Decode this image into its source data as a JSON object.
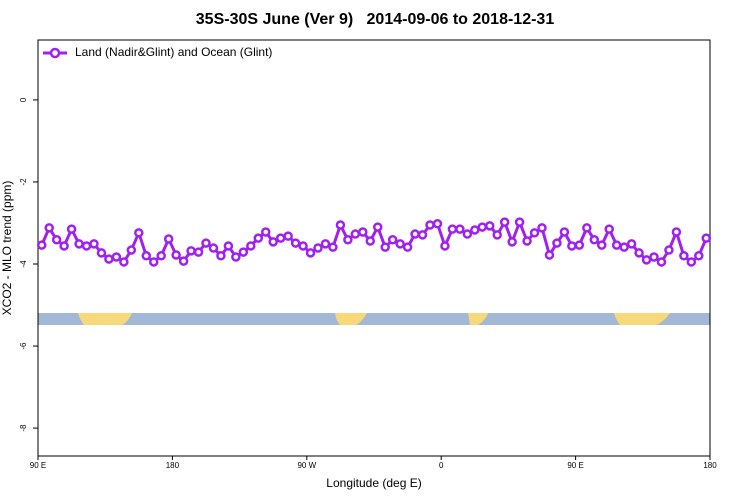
{
  "chart_data": {
    "type": "line",
    "title": "35S-30S June (Ver 9)   2014-09-06 to 2018-12-31",
    "x_label": "Longitude (deg E)",
    "y_label": "XCO2 - MLO trend (ppm)",
    "x": [
      92.5,
      97.5,
      102.5,
      107.5,
      112.5,
      117.5,
      122.5,
      127.5,
      132.5,
      137.5,
      142.5,
      147.5,
      152.5,
      157.5,
      162.5,
      167.5,
      172.5,
      177.5,
      182.5,
      187.5,
      192.5,
      197.5,
      202.5,
      207.5,
      212.5,
      217.5,
      222.5,
      227.5,
      232.5,
      237.5,
      242.5,
      247.5,
      252.5,
      257.5,
      262.5,
      267.5,
      272.5,
      277.5,
      282.5,
      287.5,
      292.5,
      297.5,
      302.5,
      307.5,
      312.5,
      317.5,
      322.5,
      327.5,
      332.5,
      337.5,
      342.5,
      347.5,
      352.5,
      357.5,
      362.5,
      367.5,
      372.5,
      377.5,
      382.5,
      387.5,
      392.5,
      397.5,
      402.5,
      407.5,
      412.5,
      417.5,
      422.5,
      427.5,
      432.5,
      437.5,
      442.5,
      447.5,
      452.5,
      457.5,
      462.5,
      467.5,
      472.5,
      477.5,
      482.5,
      487.5,
      492.5,
      497.5,
      502.5,
      507.5,
      512.5,
      517.5,
      522.5,
      527.5,
      532.5,
      537.5
    ],
    "series": [
      {
        "name": "Land (Nadir&Glint) and Ocean (Glint)",
        "color": "#a020f0",
        "values": [
          -3.54,
          -3.12,
          -3.41,
          -3.56,
          -3.15,
          -3.51,
          -3.56,
          -3.51,
          -3.73,
          -3.88,
          -3.83,
          -3.95,
          -3.66,
          -3.24,
          -3.8,
          -3.95,
          -3.8,
          -3.39,
          -3.78,
          -3.93,
          -3.68,
          -3.71,
          -3.49,
          -3.61,
          -3.8,
          -3.56,
          -3.83,
          -3.71,
          -3.56,
          -3.37,
          -3.22,
          -3.46,
          -3.37,
          -3.32,
          -3.49,
          -3.56,
          -3.73,
          -3.61,
          -3.51,
          -3.59,
          -3.05,
          -3.41,
          -3.27,
          -3.22,
          -3.44,
          -3.1,
          -3.59,
          -3.41,
          -3.51,
          -3.59,
          -3.27,
          -3.29,
          -3.05,
          -3.02,
          -3.56,
          -3.15,
          -3.15,
          -3.27,
          -3.17,
          -3.1,
          -3.07,
          -3.29,
          -2.98,
          -3.46,
          -2.98,
          -3.44,
          -3.24,
          -3.12,
          -3.78,
          -3.49,
          -3.22,
          -3.56,
          -3.54,
          -3.12,
          -3.41,
          -3.54,
          -3.15,
          -3.54,
          -3.59,
          -3.51,
          -3.73,
          -3.9,
          -3.83,
          -3.95,
          -3.66,
          -3.22,
          -3.8,
          -3.95,
          -3.8,
          -3.37
        ]
      }
    ],
    "xlim": [
      90,
      540
    ],
    "xticks": [
      {
        "value": 90,
        "label": "90 E"
      },
      180,
      {
        "value": 270,
        "label": "90 W"
      },
      {
        "value": 360,
        "label": "0"
      },
      {
        "value": 450,
        "label": "90 E"
      },
      {
        "value": 540,
        "label": "180"
      }
    ],
    "ylim": [
      -8.68,
      1.46
    ],
    "yticks": [
      0,
      -2,
      -4,
      -6,
      -8
    ],
    "legend": "topleft"
  }
}
